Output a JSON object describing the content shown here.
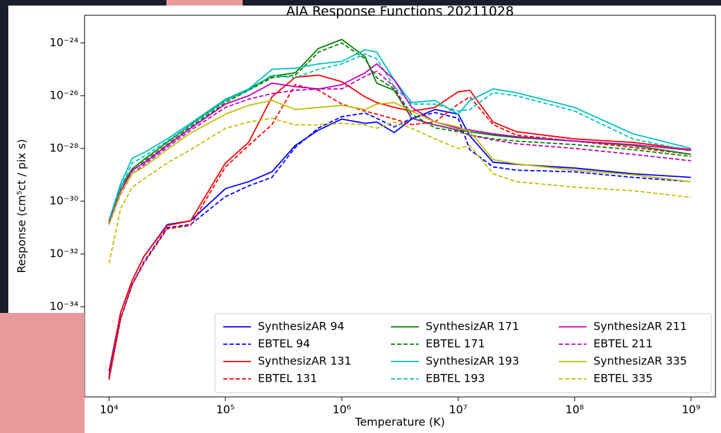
{
  "chart_data": {
    "type": "line",
    "title": "AIA Response Functions 20211028",
    "x_label": "Temperature (K)",
    "y_label": "Response (cm⁵ct / pix s)",
    "x_log": true,
    "y_log": true,
    "legend": "lower right",
    "xlim": [
      6166,
      1622000000
    ],
    "ylim": [
      3.8e-38,
      1.12e-23
    ],
    "xticks": [
      {
        "value": 10000,
        "label": "10⁴"
      },
      {
        "value": 100000,
        "label": "10⁵"
      },
      {
        "value": 1000000,
        "label": "10⁶"
      },
      {
        "value": 10000000,
        "label": "10⁷"
      },
      {
        "value": 100000000,
        "label": "10⁸"
      },
      {
        "value": 1000000000,
        "label": "10⁹"
      }
    ],
    "yticks": [
      {
        "value": 1e-34,
        "label": "10⁻³⁴"
      },
      {
        "value": 1e-32,
        "label": "10⁻³²"
      },
      {
        "value": 1e-30,
        "label": "10⁻³⁰"
      },
      {
        "value": 1e-28,
        "label": "10⁻²⁸"
      },
      {
        "value": 1e-26,
        "label": "10⁻²⁶"
      },
      {
        "value": 1e-24,
        "label": "10⁻²⁴"
      }
    ],
    "x": [
      10000,
      12589,
      15849,
      19953,
      31623,
      50119,
      100000,
      158489,
      251189,
      398107,
      630957,
      1000000,
      1584893,
      1995262,
      2818383,
      3981072,
      6309573,
      10000000,
      12589254,
      19952623,
      31622777,
      100000000,
      316227766,
      1000000000
    ],
    "series": [
      {
        "name": "SynthesizAR 94",
        "color": "#0000ff",
        "dashed": false,
        "values": [
          3.5e-37,
          6e-35,
          1e-33,
          8e-33,
          1.3e-31,
          1.8e-31,
          3e-30,
          5.5e-30,
          1.3e-29,
          1.3e-28,
          5e-28,
          1.3e-27,
          9e-28,
          1e-27,
          4e-28,
          1.3e-27,
          3e-27,
          2e-27,
          3e-28,
          3e-29,
          2.5e-29,
          1.8e-29,
          1.1e-29,
          8e-30
        ]
      },
      {
        "name": "EBTEL 94",
        "color": "#0000ff",
        "dashed": true,
        "values": [
          2e-37,
          3.5e-35,
          7e-34,
          5e-33,
          1e-31,
          1.3e-31,
          1.5e-30,
          3.8e-30,
          8e-30,
          1.1e-28,
          6e-28,
          1.6e-27,
          2.2e-27,
          1.4e-27,
          6.5e-28,
          1.4e-27,
          2.3e-27,
          1.4e-27,
          9e-29,
          2e-29,
          1.5e-29,
          1.3e-29,
          8e-30,
          5.5e-30
        ]
      },
      {
        "name": "SynthesizAR 131",
        "color": "#ff0000",
        "dashed": false,
        "values": [
          2.5e-37,
          6e-35,
          1e-33,
          8e-33,
          1.2e-31,
          1.8e-31,
          2.8e-29,
          1.7e-28,
          9e-27,
          5e-26,
          6e-26,
          3.4e-26,
          9e-27,
          5.5e-27,
          3.6e-27,
          2.6e-27,
          3.6e-27,
          1.4e-26,
          1.6e-26,
          1e-27,
          4.3e-28,
          2.3e-28,
          1.7e-28,
          9e-29
        ]
      },
      {
        "name": "EBTEL 131",
        "color": "#ff0000",
        "dashed": true,
        "values": [
          1.7e-37,
          3.5e-35,
          7e-34,
          4.5e-33,
          9e-32,
          1.2e-31,
          2e-29,
          1.3e-28,
          8e-28,
          2.6e-26,
          1.6e-26,
          4.8e-27,
          2.6e-27,
          2e-27,
          1.3e-27,
          8e-28,
          1e-27,
          4.8e-27,
          9e-27,
          8e-28,
          3.2e-28,
          1.9e-28,
          1.1e-28,
          6e-29
        ]
      },
      {
        "name": "SynthesizAR 171",
        "color": "#008000",
        "dashed": false,
        "values": [
          1.7e-31,
          3.4e-30,
          1.7e-29,
          3.8e-29,
          1.7e-28,
          7.8e-28,
          6.6e-27,
          1.8e-26,
          5.5e-26,
          7.4e-26,
          6.2e-25,
          1.35e-24,
          3e-25,
          3e-26,
          1.6e-26,
          1.4e-27,
          7.8e-28,
          5e-28,
          4.3e-28,
          3.2e-28,
          2.6e-28,
          1.9e-28,
          1.3e-28,
          6e-29
        ]
      },
      {
        "name": "EBTEL 171",
        "color": "#008000",
        "dashed": true,
        "values": [
          1.4e-31,
          2.5e-30,
          1.4e-29,
          3.2e-29,
          1.4e-28,
          6.6e-28,
          5.5e-27,
          1.6e-26,
          4.8e-26,
          6e-26,
          4.5e-25,
          1e-24,
          2.5e-25,
          4.8e-26,
          1.8e-26,
          2e-27,
          6e-28,
          4.3e-28,
          3.2e-28,
          2.3e-28,
          1.9e-28,
          1.4e-28,
          9e-29,
          5e-29
        ]
      },
      {
        "name": "SynthesizAR 193",
        "color": "#00bfbf",
        "dashed": false,
        "values": [
          1.9e-31,
          4.6e-30,
          4.3e-29,
          6.9e-29,
          2.3e-28,
          9e-28,
          7.4e-27,
          1.8e-26,
          1e-25,
          1.1e-25,
          1.6e-25,
          2e-25,
          5.5e-25,
          4.5e-25,
          4e-26,
          5.5e-27,
          6.6e-27,
          2e-27,
          6.6e-27,
          1.8e-26,
          1.3e-26,
          3.6e-27,
          3.6e-28,
          1e-28
        ]
      },
      {
        "name": "EBTEL 193",
        "color": "#00bfbf",
        "dashed": true,
        "values": [
          1.5e-31,
          3.4e-30,
          2.8e-29,
          5e-29,
          1.9e-28,
          7.8e-28,
          6.6e-27,
          1.6e-26,
          6e-26,
          4.8e-26,
          1e-25,
          1.6e-25,
          3.8e-25,
          2.5e-25,
          2.2e-26,
          4.8e-27,
          4.8e-27,
          2.6e-27,
          3e-27,
          1.3e-26,
          1e-26,
          2.6e-27,
          2.3e-28,
          8e-29
        ]
      },
      {
        "name": "SynthesizAR 211",
        "color": "#bf00bf",
        "dashed": false,
        "values": [
          1.5e-31,
          2.5e-30,
          1.5e-29,
          2.8e-29,
          1.3e-28,
          5.8e-28,
          4.8e-27,
          1e-26,
          3e-26,
          2.2e-26,
          1.8e-26,
          2.6e-26,
          7.4e-26,
          1.6e-25,
          4e-26,
          3.6e-27,
          1e-27,
          5.8e-28,
          5e-28,
          3.6e-28,
          2.8e-28,
          1.9e-28,
          1.4e-28,
          8.5e-29
        ]
      },
      {
        "name": "EBTEL 211",
        "color": "#bf00bf",
        "dashed": true,
        "values": [
          1.3e-31,
          1.9e-30,
          1.1e-29,
          2.4e-29,
          1.1e-28,
          4.8e-28,
          3.6e-27,
          7.4e-27,
          1.2e-26,
          1.6e-26,
          1.8e-26,
          1.8e-26,
          5.5e-26,
          8.4e-26,
          2.2e-26,
          1.4e-27,
          7.8e-28,
          4.8e-28,
          3.2e-28,
          2.1e-28,
          1.5e-28,
          1e-28,
          6e-29,
          3.4e-29
        ]
      },
      {
        "name": "SynthesizAR 335",
        "color": "#bfbf00",
        "dashed": false,
        "values": [
          1.3e-31,
          2.1e-30,
          1.1e-29,
          2e-29,
          9e-29,
          3.8e-28,
          2e-27,
          4.3e-27,
          6.6e-27,
          3e-27,
          3.6e-27,
          4.3e-27,
          3e-27,
          4.8e-27,
          5.5e-27,
          2.6e-27,
          1e-27,
          6.6e-28,
          4.3e-28,
          3.8e-29,
          2.6e-29,
          1.5e-29,
          1e-29,
          5.5e-30
        ]
      },
      {
        "name": "EBTEL 335",
        "color": "#bfbf00",
        "dashed": true,
        "values": [
          4.4e-33,
          5.3e-31,
          3.4e-30,
          7e-30,
          2.8e-29,
          9e-29,
          5.8e-28,
          1e-27,
          1.4e-27,
          7.8e-28,
          7.8e-28,
          9e-28,
          7.8e-28,
          5.8e-28,
          1e-27,
          5.8e-28,
          2.3e-28,
          1e-28,
          1.3e-28,
          1.1e-29,
          5.5e-30,
          3.4e-30,
          2.5e-30,
          1.4e-30
        ]
      }
    ]
  }
}
